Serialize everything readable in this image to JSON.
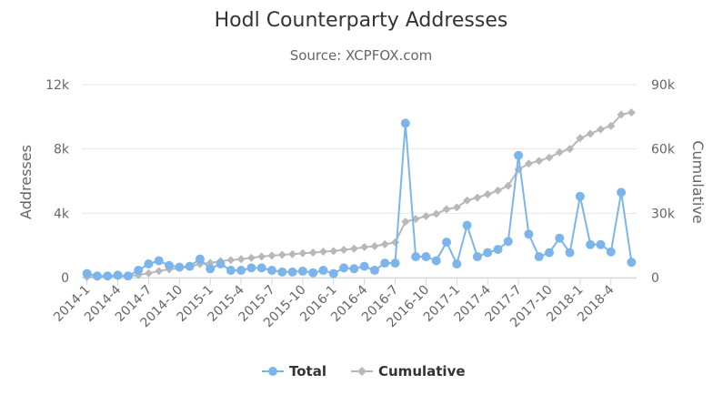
{
  "chart_data": {
    "type": "line",
    "title": "Hodl Counterparty Addresses",
    "subtitle": "Source: XCPFOX.com",
    "ylabel_left": "Addresses",
    "ylabel_right": "Cumulative",
    "ylim_left": [
      0,
      12000
    ],
    "ylim_right": [
      0,
      90000
    ],
    "yticks_left": [
      "0",
      "4k",
      "8k",
      "12k"
    ],
    "yticks_right": [
      "0",
      "30k",
      "60k",
      "90k"
    ],
    "xtick_labels": [
      "2014-1",
      "2014-4",
      "2014-7",
      "2014-10",
      "2015-1",
      "2015-4",
      "2015-7",
      "2015-10",
      "2016-1",
      "2016-4",
      "2016-7",
      "2016-10",
      "2017-1",
      "2017-4",
      "2017-7",
      "2017-10",
      "2018-1",
      "2018-4"
    ],
    "categories": [
      "2014-1",
      "2014-2",
      "2014-3",
      "2014-4",
      "2014-5",
      "2014-6",
      "2014-7",
      "2014-8",
      "2014-9",
      "2014-10",
      "2014-11",
      "2014-12",
      "2015-1",
      "2015-2",
      "2015-3",
      "2015-4",
      "2015-5",
      "2015-6",
      "2015-7",
      "2015-8",
      "2015-9",
      "2015-10",
      "2015-11",
      "2015-12",
      "2016-1",
      "2016-2",
      "2016-3",
      "2016-4",
      "2016-5",
      "2016-6",
      "2016-7",
      "2016-8",
      "2016-9",
      "2016-10",
      "2016-11",
      "2016-12",
      "2017-1",
      "2017-2",
      "2017-3",
      "2017-4",
      "2017-5",
      "2017-6",
      "2017-7",
      "2017-8",
      "2017-9",
      "2017-10",
      "2017-11",
      "2017-12",
      "2018-1",
      "2018-2",
      "2018-3",
      "2018-4",
      "2018-5",
      "2018-6"
    ],
    "grid": true,
    "legend_position": "bottom-center",
    "series": [
      {
        "name": "Total",
        "axis": "left",
        "color": "#7cb5ec",
        "marker": "circle",
        "values": [
          250,
          100,
          100,
          150,
          100,
          450,
          850,
          1050,
          750,
          650,
          700,
          1150,
          550,
          850,
          450,
          450,
          600,
          600,
          450,
          350,
          350,
          400,
          300,
          450,
          250,
          600,
          550,
          700,
          450,
          900,
          900,
          9600,
          1300,
          1300,
          1050,
          2200,
          850,
          3250,
          1300,
          1550,
          1750,
          2250,
          7600,
          2700,
          1300,
          1550,
          2450,
          1550,
          5050,
          2050,
          2050,
          1600,
          5300,
          950
        ]
      },
      {
        "name": "Cumulative",
        "axis": "right",
        "color": "#b8b8b8",
        "marker": "diamond",
        "values": [
          250,
          350,
          450,
          600,
          700,
          1150,
          2000,
          3050,
          3800,
          4450,
          5150,
          6300,
          6850,
          7700,
          8150,
          8600,
          9200,
          9800,
          10250,
          10600,
          10950,
          11350,
          11650,
          12100,
          12350,
          12950,
          13500,
          14200,
          14650,
          15550,
          16450,
          26050,
          27350,
          28650,
          29700,
          31900,
          32750,
          36000,
          37300,
          38850,
          40600,
          42850,
          50450,
          53150,
          54450,
          56000,
          58450,
          60000,
          65050,
          67100,
          69150,
          70750,
          76050,
          77000
        ]
      }
    ]
  }
}
